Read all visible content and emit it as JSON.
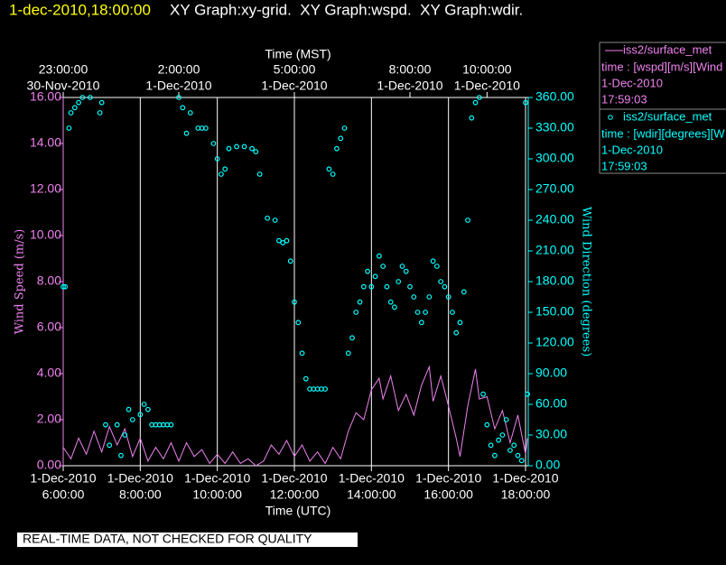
{
  "chart_data": {
    "type": "line",
    "title": "1-dec-2010,18:00:00",
    "subtitle": "XY Graph:xy-grid.  XY Graph:wspd.  XY Graph:wdir.",
    "x_label": "Time (UTC)",
    "x2_label": "Time (MST)",
    "y_label": "Wind Speed (m/s)",
    "y2_label": "Wind Direction (degrees)",
    "note": "REAL-TIME DATA, NOT CHECKED FOR QUALITY",
    "grid": true,
    "xlim": [
      6,
      18.07
    ],
    "xticks": [
      {
        "value": 6,
        "label": "6:00:00",
        "date": "1-Dec-2010"
      },
      {
        "value": 8,
        "label": "8:00:00",
        "date": "1-Dec-2010"
      },
      {
        "value": 10,
        "label": "10:00:00",
        "date": "1-Dec-2010"
      },
      {
        "value": 12,
        "label": "12:00:00",
        "date": "1-Dec-2010"
      },
      {
        "value": 14,
        "label": "14:00:00",
        "date": "1-Dec-2010"
      },
      {
        "value": 16,
        "label": "16:00:00",
        "date": "1-Dec-2010"
      },
      {
        "value": 18,
        "label": "18:00:00",
        "date": "1-Dec-2010"
      }
    ],
    "x2ticks": [
      {
        "value": 6,
        "label": "23:00:00",
        "date": "30-Nov-2010"
      },
      {
        "value": 9,
        "label": "2:00:00",
        "date": "1-Dec-2010"
      },
      {
        "value": 12,
        "label": "5:00:00",
        "date": "1-Dec-2010"
      },
      {
        "value": 15,
        "label": "8:00:00",
        "date": "1-Dec-2010"
      },
      {
        "value": 17,
        "label": "10:00:00",
        "date": "1-Dec-2010"
      }
    ],
    "ylim": [
      0,
      16
    ],
    "yticks": [
      {
        "value": 0,
        "label": "0.00"
      },
      {
        "value": 2,
        "label": "2.00"
      },
      {
        "value": 4,
        "label": "4.00"
      },
      {
        "value": 6,
        "label": "6.00"
      },
      {
        "value": 8,
        "label": "8.00"
      },
      {
        "value": 10,
        "label": "10.00"
      },
      {
        "value": 12,
        "label": "12.00"
      },
      {
        "value": 14,
        "label": "14.00"
      },
      {
        "value": 16,
        "label": "16.00"
      }
    ],
    "y2lim": [
      0,
      360
    ],
    "y2ticks": [
      {
        "value": 0,
        "label": "0.00"
      },
      {
        "value": 30,
        "label": "30.00"
      },
      {
        "value": 60,
        "label": "60.00"
      },
      {
        "value": 90,
        "label": "90.00"
      },
      {
        "value": 120,
        "label": "120.00"
      },
      {
        "value": 150,
        "label": "150.00"
      },
      {
        "value": 180,
        "label": "180.00"
      },
      {
        "value": 210,
        "label": "210.00"
      },
      {
        "value": 240,
        "label": "240.00"
      },
      {
        "value": 270,
        "label": "270.00"
      },
      {
        "value": 300,
        "label": "300.00"
      },
      {
        "value": 330,
        "label": "330.00"
      },
      {
        "value": 360,
        "label": "360.00"
      }
    ],
    "series": [
      {
        "name": "iss2/surface_met",
        "type": "line",
        "color": "#ee82ee",
        "legend_lines": [
          "time : [wspd][m/s][Wind",
          "1-Dec-2010",
          "17:59:03"
        ],
        "x": [
          6.0,
          6.2,
          6.4,
          6.6,
          6.8,
          7.0,
          7.2,
          7.4,
          7.6,
          7.8,
          8.0,
          8.2,
          8.4,
          8.6,
          8.8,
          9.0,
          9.2,
          9.4,
          9.6,
          9.8,
          10.0,
          10.2,
          10.4,
          10.6,
          10.8,
          11.0,
          11.2,
          11.4,
          11.6,
          11.8,
          12.0,
          12.2,
          12.4,
          12.6,
          12.8,
          13.0,
          13.2,
          13.4,
          13.6,
          13.8,
          14.0,
          14.2,
          14.3,
          14.5,
          14.7,
          14.9,
          15.1,
          15.3,
          15.5,
          15.6,
          15.8,
          16.0,
          16.2,
          16.3,
          16.5,
          16.7,
          16.8,
          17.0,
          17.2,
          17.4,
          17.6,
          17.8,
          18.0,
          18.05
        ],
        "values": [
          0.8,
          0.3,
          1.2,
          0.5,
          1.5,
          0.6,
          1.7,
          0.9,
          1.6,
          0.4,
          1.2,
          0.2,
          0.8,
          0.3,
          1.0,
          0.2,
          1.0,
          0.4,
          0.7,
          0.1,
          0.5,
          0.1,
          0.6,
          0.1,
          0.3,
          0,
          0.2,
          0.9,
          0.5,
          1.1,
          0.4,
          0.9,
          0.2,
          0.6,
          0.1,
          0.8,
          0.3,
          1.5,
          2.3,
          2.0,
          3.3,
          3.8,
          2.9,
          3.9,
          2.4,
          3.1,
          2.2,
          3.5,
          4.3,
          2.8,
          3.9,
          2.6,
          1.2,
          0.4,
          2.6,
          4.2,
          2.9,
          3.0,
          1.6,
          2.4,
          1.0,
          2.2,
          0.5,
          1.2
        ]
      },
      {
        "name": "iss2/surface_met",
        "type": "scatter",
        "color": "#00ffff",
        "axis": "y2",
        "legend_lines": [
          "time : [wdir][degrees][W",
          "1-Dec-2010",
          "17:59:03"
        ],
        "x": [
          6.0,
          6.05,
          6.15,
          6.2,
          6.3,
          6.4,
          6.5,
          6.7,
          6.95,
          7.0,
          7.1,
          7.2,
          7.4,
          7.5,
          7.6,
          7.7,
          7.8,
          8.0,
          8.1,
          8.2,
          8.3,
          8.4,
          8.5,
          8.6,
          8.7,
          8.8,
          9.0,
          9.1,
          9.2,
          9.3,
          9.5,
          9.6,
          9.7,
          9.9,
          10.0,
          10.1,
          10.2,
          10.3,
          10.5,
          10.7,
          10.9,
          11.0,
          11.1,
          11.3,
          11.5,
          11.6,
          11.7,
          11.8,
          11.9,
          12.0,
          12.1,
          12.2,
          12.3,
          12.4,
          12.5,
          12.6,
          12.7,
          12.8,
          12.9,
          13.0,
          13.1,
          13.2,
          13.3,
          13.4,
          13.5,
          13.6,
          13.7,
          13.8,
          13.9,
          14.0,
          14.1,
          14.2,
          14.3,
          14.4,
          14.5,
          14.6,
          14.7,
          14.8,
          14.9,
          15.0,
          15.1,
          15.2,
          15.3,
          15.4,
          15.5,
          15.6,
          15.7,
          15.8,
          15.9,
          16.0,
          16.1,
          16.2,
          16.3,
          16.4,
          16.5,
          16.6,
          16.7,
          16.8,
          16.9,
          17.0,
          17.1,
          17.2,
          17.3,
          17.4,
          17.5,
          17.6,
          17.7,
          17.8,
          17.9,
          18.0,
          18.05
        ],
        "values": [
          175,
          175,
          330,
          345,
          350,
          355,
          360,
          360,
          345,
          355,
          40,
          20,
          40,
          10,
          30,
          55,
          45,
          50,
          60,
          55,
          40,
          40,
          40,
          40,
          40,
          40,
          360,
          350,
          325,
          345,
          330,
          330,
          330,
          315,
          300,
          285,
          290,
          310,
          312,
          312,
          310,
          307,
          285,
          242,
          240,
          220,
          218,
          220,
          200,
          160,
          140,
          110,
          85,
          75,
          75,
          75,
          75,
          75,
          290,
          285,
          310,
          320,
          330,
          110,
          125,
          150,
          160,
          175,
          190,
          175,
          185,
          205,
          195,
          175,
          160,
          155,
          180,
          195,
          190,
          175,
          165,
          150,
          140,
          150,
          165,
          200,
          195,
          180,
          175,
          165,
          150,
          130,
          140,
          170,
          240,
          340,
          355,
          360,
          70,
          40,
          20,
          10,
          25,
          30,
          45,
          15,
          20,
          10,
          5,
          355,
          70
        ]
      }
    ]
  }
}
